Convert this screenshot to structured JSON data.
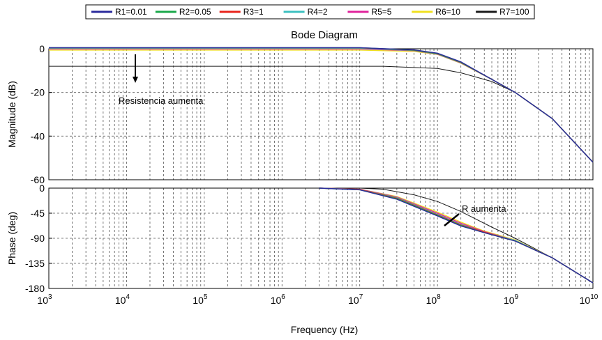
{
  "chart_data": [
    {
      "type": "line",
      "title": "Bode Diagram",
      "ylabel": "Magnitude (dB)",
      "xlabel": "",
      "xscale": "log",
      "xlim": [
        1000,
        10000000000
      ],
      "ylim": [
        -60,
        0
      ],
      "yticks": [
        "0",
        "-20",
        "-40",
        "-60"
      ],
      "grid": true,
      "annotation": "Resistencia aumenta",
      "series": [
        {
          "name": "R1=0.01",
          "x": [
            1000,
            10000000,
            50000000,
            100000000,
            200000000,
            500000000,
            1000000000,
            3000000000,
            10000000000
          ],
          "values": [
            0.5,
            0.5,
            -0.5,
            -2,
            -6,
            -14,
            -20,
            -32,
            -52
          ]
        },
        {
          "name": "R2=0.05",
          "x": [
            1000,
            10000000,
            50000000,
            100000000,
            200000000,
            500000000,
            1000000000,
            3000000000,
            10000000000
          ],
          "values": [
            0.5,
            0.5,
            -0.6,
            -2.2,
            -6.2,
            -14,
            -20,
            -32,
            -52
          ]
        },
        {
          "name": "R3=1",
          "x": [
            1000,
            10000000,
            50000000,
            100000000,
            200000000,
            500000000,
            1000000000,
            3000000000,
            10000000000
          ],
          "values": [
            0.4,
            0.4,
            -0.7,
            -2.3,
            -6.3,
            -14,
            -20,
            -32,
            -52
          ]
        },
        {
          "name": "R4=2",
          "x": [
            1000,
            10000000,
            50000000,
            100000000,
            200000000,
            500000000,
            1000000000,
            3000000000,
            10000000000
          ],
          "values": [
            0.2,
            0.2,
            -0.8,
            -2.4,
            -6.4,
            -14,
            -20,
            -32,
            -52
          ]
        },
        {
          "name": "R5=5",
          "x": [
            1000,
            10000000,
            50000000,
            100000000,
            200000000,
            500000000,
            1000000000,
            3000000000,
            10000000000
          ],
          "values": [
            -0.1,
            -0.1,
            -0.9,
            -2.5,
            -6.5,
            -14,
            -20,
            -32,
            -52
          ]
        },
        {
          "name": "R6=10",
          "x": [
            1000,
            10000000,
            50000000,
            100000000,
            200000000,
            500000000,
            1000000000,
            3000000000,
            10000000000
          ],
          "values": [
            -0.6,
            -0.6,
            -1.2,
            -2.6,
            -6.6,
            -14,
            -20,
            -32,
            -52
          ]
        },
        {
          "name": "R7=100",
          "x": [
            1000,
            20000000,
            100000000,
            200000000,
            500000000,
            1000000000,
            3000000000,
            10000000000
          ],
          "values": [
            -8,
            -8,
            -9,
            -11,
            -15,
            -20,
            -32,
            -52
          ]
        }
      ]
    },
    {
      "type": "line",
      "title": "",
      "ylabel": "Phase (deg)",
      "xlabel": "Frequency (Hz)",
      "xscale": "log",
      "xlim": [
        1000,
        10000000000
      ],
      "ylim": [
        -180,
        0
      ],
      "yticks": [
        "0",
        "-45",
        "-90",
        "-135",
        "-180"
      ],
      "xticks": [
        "10^3",
        "10^4",
        "10^5",
        "10^6",
        "10^7",
        "10^8",
        "10^9",
        "10^10"
      ],
      "grid": true,
      "annotation": "R aumenta",
      "series": [
        {
          "name": "R1=0.01",
          "x": [
            3000000,
            10000000,
            30000000,
            100000000,
            200000000,
            400000000,
            1000000000,
            3000000000,
            10000000000
          ],
          "values": [
            0,
            -3,
            -20,
            -50,
            -68,
            -80,
            -95,
            -125,
            -170
          ]
        },
        {
          "name": "R2=0.05",
          "x": [
            3000000,
            10000000,
            30000000,
            100000000,
            200000000,
            400000000,
            1000000000,
            3000000000,
            10000000000
          ],
          "values": [
            0,
            -3,
            -19,
            -49,
            -67,
            -80,
            -95,
            -125,
            -170
          ]
        },
        {
          "name": "R3=1",
          "x": [
            3000000,
            10000000,
            30000000,
            100000000,
            200000000,
            400000000,
            1000000000,
            3000000000,
            10000000000
          ],
          "values": [
            0,
            -2.5,
            -18,
            -48,
            -66,
            -79,
            -95,
            -125,
            -170
          ]
        },
        {
          "name": "R4=2",
          "x": [
            3000000,
            10000000,
            30000000,
            100000000,
            200000000,
            400000000,
            1000000000,
            3000000000,
            10000000000
          ],
          "values": [
            0,
            -2.5,
            -17,
            -47,
            -65,
            -79,
            -94,
            -125,
            -170
          ]
        },
        {
          "name": "R5=5",
          "x": [
            3000000,
            10000000,
            30000000,
            100000000,
            200000000,
            400000000,
            1000000000,
            3000000000,
            10000000000
          ],
          "values": [
            0,
            -2,
            -16,
            -45,
            -63,
            -78,
            -94,
            -125,
            -170
          ]
        },
        {
          "name": "R6=10",
          "x": [
            3000000,
            10000000,
            30000000,
            100000000,
            200000000,
            400000000,
            1000000000,
            3000000000,
            10000000000
          ],
          "values": [
            0,
            -2,
            -15,
            -43,
            -61,
            -77,
            -93,
            -125,
            -170
          ]
        },
        {
          "name": "R7=100",
          "x": [
            10000000,
            20000000,
            50000000,
            100000000,
            200000000,
            500000000,
            1000000000,
            3000000000,
            10000000000
          ],
          "values": [
            0,
            -2,
            -12,
            -24,
            -42,
            -70,
            -90,
            -125,
            -170
          ]
        }
      ]
    }
  ],
  "colors": {
    "R1=0.01": "#2b2b9c",
    "R2=0.05": "#1aa84a",
    "R3=1": "#e8241c",
    "R4=2": "#3cc0c0",
    "R5=5": "#e0249c",
    "R6=10": "#f0e020",
    "R7=100": "#1a1a1a"
  }
}
